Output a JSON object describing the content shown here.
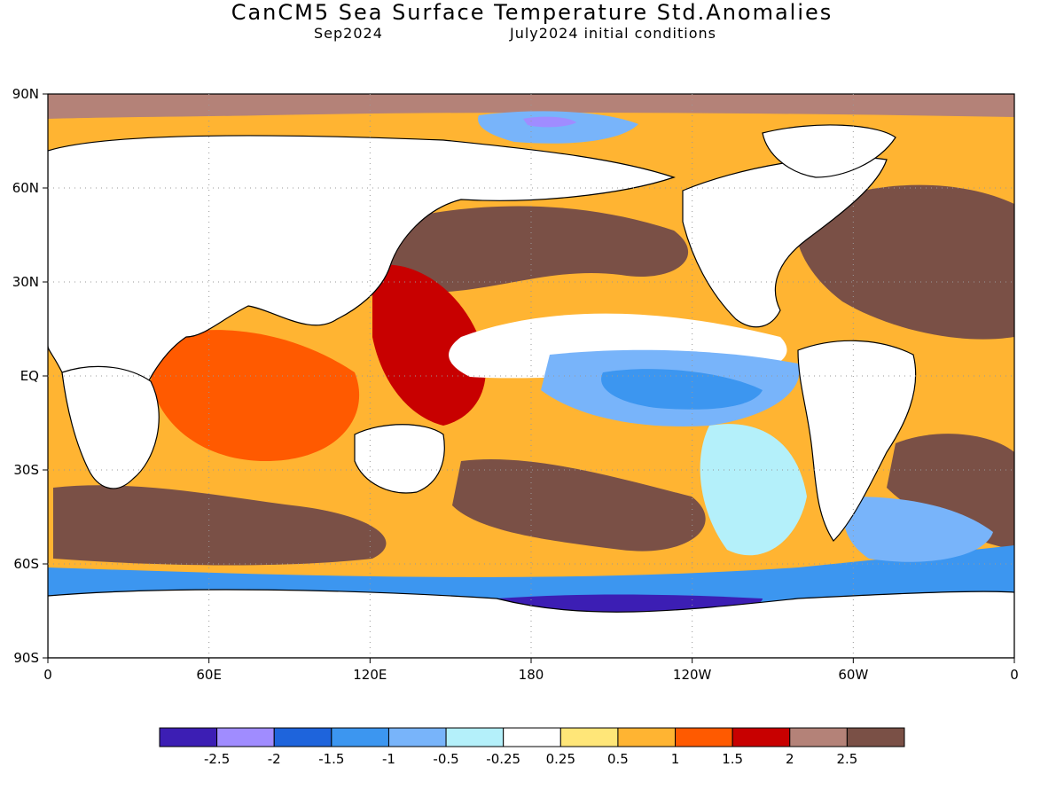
{
  "title": "CanCM5 Sea Surface Temperature Std.Anomalies",
  "subtitle_left": "Sep2024",
  "subtitle_right": "July2024 initial conditions",
  "lat_labels": [
    "90N",
    "60N",
    "30N",
    "EQ",
    "30S",
    "60S",
    "90S"
  ],
  "lon_labels": [
    "0",
    "60E",
    "120E",
    "180",
    "120W",
    "60W",
    "0"
  ],
  "colorbar": {
    "colors": [
      "#3c1eb4",
      "#a08cff",
      "#1e64dc",
      "#3c96f0",
      "#78b4fa",
      "#b4f0fa",
      "#ffffff",
      "#ffe678",
      "#ffb432",
      "#ff5a00",
      "#c80000",
      "#b48278",
      "#7a5046"
    ],
    "labels": [
      "-2.5",
      "-2",
      "-1.5",
      "-1",
      "-0.5",
      "-0.25",
      "0.25",
      "0.5",
      "1",
      "1.5",
      "2",
      "2.5"
    ]
  },
  "colors": {
    "land": "#ffffff",
    "coast": "#000000",
    "grid": "#999999"
  },
  "anomaly_regions": [
    {
      "name": "central-equatorial-pacific-cool-tongue",
      "level": -1
    },
    {
      "name": "eastern-equatorial-pacific",
      "level": -0.5
    },
    {
      "name": "southern-ocean-antarctic-margin",
      "level": -2
    },
    {
      "name": "western-pacific-warm-pool",
      "level": 2.5
    },
    {
      "name": "north-pacific",
      "level": 2.5
    },
    {
      "name": "north-atlantic",
      "level": 2.5
    },
    {
      "name": "indian-ocean",
      "level": 1.5
    },
    {
      "name": "southern-hemisphere-midlatitudes",
      "level": 2.5
    },
    {
      "name": "arctic",
      "level": 2
    }
  ]
}
